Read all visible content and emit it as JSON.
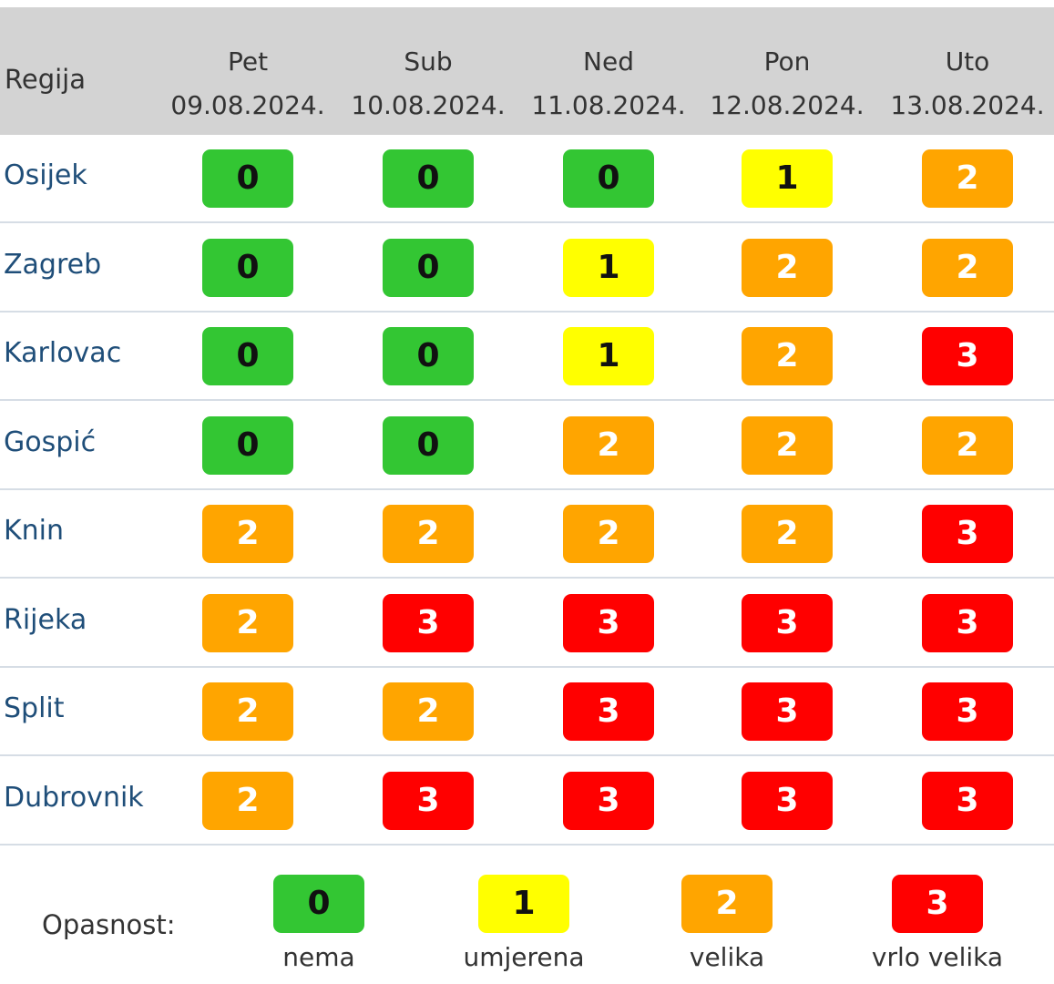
{
  "table": {
    "region_header": "Regija",
    "days": [
      {
        "day": "Pet",
        "date": "09.08.2024."
      },
      {
        "day": "Sub",
        "date": "10.08.2024."
      },
      {
        "day": "Ned",
        "date": "11.08.2024."
      },
      {
        "day": "Pon",
        "date": "12.08.2024."
      },
      {
        "day": "Uto",
        "date": "13.08.2024."
      }
    ],
    "rows": [
      {
        "region": "Osijek",
        "levels": [
          0,
          0,
          0,
          1,
          2
        ]
      },
      {
        "region": "Zagreb",
        "levels": [
          0,
          0,
          1,
          2,
          2
        ]
      },
      {
        "region": "Karlovac",
        "levels": [
          0,
          0,
          1,
          2,
          3
        ]
      },
      {
        "region": "Gospić",
        "levels": [
          0,
          0,
          2,
          2,
          2
        ]
      },
      {
        "region": "Knin",
        "levels": [
          2,
          2,
          2,
          2,
          3
        ]
      },
      {
        "region": "Rijeka",
        "levels": [
          2,
          3,
          3,
          3,
          3
        ]
      },
      {
        "region": "Split",
        "levels": [
          2,
          2,
          3,
          3,
          3
        ]
      },
      {
        "region": "Dubrovnik",
        "levels": [
          2,
          3,
          3,
          3,
          3
        ]
      }
    ]
  },
  "legend": {
    "title": "Opasnost:",
    "items": [
      {
        "level": 0,
        "label": "nema",
        "color": "#33c633"
      },
      {
        "level": 1,
        "label": "umjerena",
        "color": "#ffff00"
      },
      {
        "level": 2,
        "label": "velika",
        "color": "#ffa500"
      },
      {
        "level": 3,
        "label": "vrlo velika",
        "color": "#ff0000"
      }
    ]
  }
}
